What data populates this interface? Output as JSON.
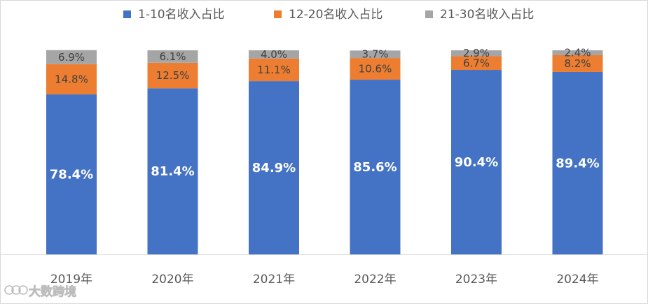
{
  "chart_data": {
    "type": "bar",
    "stacked": true,
    "categories": [
      "2019年",
      "2020年",
      "2021年",
      "2022年",
      "2023年",
      "2024年"
    ],
    "series": [
      {
        "name": "1-10名收入占比",
        "color": "#4472C4",
        "values": [
          78.4,
          81.4,
          84.9,
          85.6,
          90.4,
          89.4
        ],
        "labels": [
          "78.4%",
          "81.4%",
          "84.9%",
          "85.6%",
          "90.4%",
          "89.4%"
        ]
      },
      {
        "name": "12-20名收入占比",
        "color": "#ED7D31",
        "values": [
          14.8,
          12.5,
          11.1,
          10.6,
          6.7,
          8.2
        ],
        "labels": [
          "14.8%",
          "12.5%",
          "11.1%",
          "10.6%",
          "6.7%",
          "8.2%"
        ]
      },
      {
        "name": "21-30名收入占比",
        "color": "#A5A5A5",
        "values": [
          6.9,
          6.1,
          4.0,
          3.7,
          2.9,
          2.4
        ],
        "labels": [
          "6.9%",
          "6.1%",
          "4.0%",
          "3.7%",
          "2.9%",
          "2.4%"
        ]
      }
    ],
    "ylim": [
      0,
      100
    ],
    "grid": false,
    "legend": "top-center"
  },
  "watermark": {
    "text": "大数跨境",
    "icon": "brand-logo-icon"
  }
}
